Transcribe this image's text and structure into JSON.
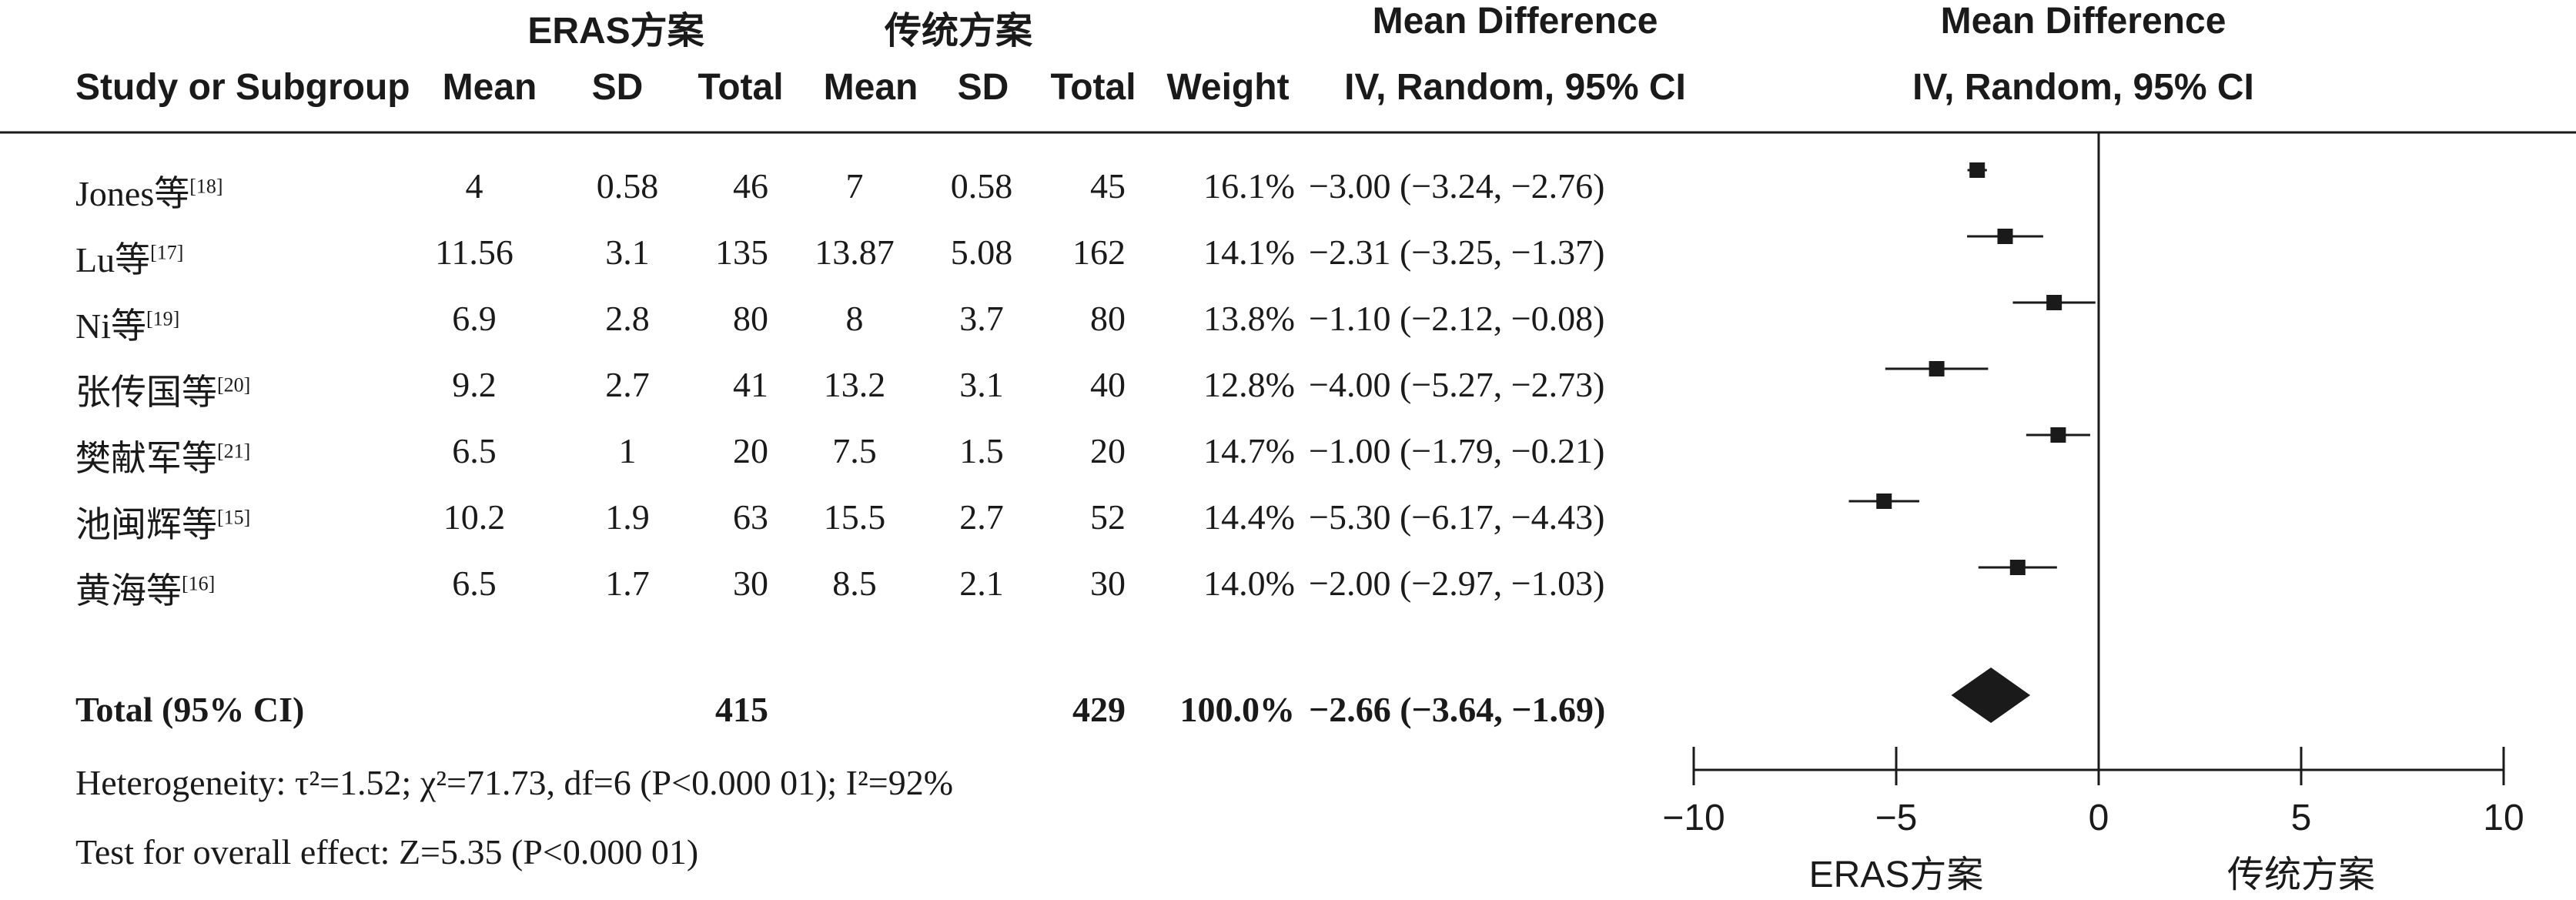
{
  "header": {
    "group1": "ERAS方案",
    "group2": "传统方案",
    "effect_title": "Mean Difference",
    "effect_method": "IV, Random, 95% CI",
    "plot_title": "Mean Difference",
    "plot_method": "IV, Random, 95% CI",
    "columns": {
      "study": "Study or Subgroup",
      "mean1": "Mean",
      "sd1": "SD",
      "total1": "Total",
      "mean2": "Mean",
      "sd2": "SD",
      "total2": "Total",
      "weight": "Weight"
    }
  },
  "studies": [
    {
      "name": "Jones等",
      "ref": "[18]",
      "mean1": "4",
      "sd1": "0.58",
      "total1": "46",
      "mean2": "7",
      "sd2": "0.58",
      "total2": "45",
      "weight": "16.1%",
      "ci": "−3.00 (−3.24, −2.76)"
    },
    {
      "name": "Lu等",
      "ref": "[17]",
      "mean1": "11.56",
      "sd1": "3.1",
      "total1": "135",
      "mean2": "13.87",
      "sd2": "5.08",
      "total2": "162",
      "weight": "14.1%",
      "ci": "−2.31 (−3.25, −1.37)"
    },
    {
      "name": "Ni等",
      "ref": "[19]",
      "mean1": "6.9",
      "sd1": "2.8",
      "total1": "80",
      "mean2": "8",
      "sd2": "3.7",
      "total2": "80",
      "weight": "13.8%",
      "ci": "−1.10 (−2.12, −0.08)"
    },
    {
      "name": "张传国等",
      "ref": "[20]",
      "mean1": "9.2",
      "sd1": "2.7",
      "total1": "41",
      "mean2": "13.2",
      "sd2": "3.1",
      "total2": "40",
      "weight": "12.8%",
      "ci": "−4.00 (−5.27, −2.73)"
    },
    {
      "name": "樊献军等",
      "ref": "[21]",
      "mean1": "6.5",
      "sd1": "1",
      "total1": "20",
      "mean2": "7.5",
      "sd2": "1.5",
      "total2": "20",
      "weight": "14.7%",
      "ci": "−1.00 (−1.79, −0.21)"
    },
    {
      "name": "池闽辉等",
      "ref": "[15]",
      "mean1": "10.2",
      "sd1": "1.9",
      "total1": "63",
      "mean2": "15.5",
      "sd2": "2.7",
      "total2": "52",
      "weight": "14.4%",
      "ci": "−5.30 (−6.17, −4.43)"
    },
    {
      "name": "黄海等",
      "ref": "[16]",
      "mean1": "6.5",
      "sd1": "1.7",
      "total1": "30",
      "mean2": "8.5",
      "sd2": "2.1",
      "total2": "30",
      "weight": "14.0%",
      "ci": "−2.00 (−2.97, −1.03)"
    }
  ],
  "total": {
    "label": "Total (95% CI)",
    "total1": "415",
    "total2": "429",
    "weight": "100.0%",
    "ci": "−2.66 (−3.64, −1.69)"
  },
  "footer": {
    "heterogeneity": "Heterogeneity: τ²=1.52; χ²=71.73, df=6 (P<0.000 01); I²=92%",
    "overall": "Test for overall effect: Z=5.35 (P<0.000 01)"
  },
  "chart_data": {
    "type": "forest",
    "xlim": [
      -10,
      10
    ],
    "ticks": [
      -10,
      -5,
      0,
      5,
      10
    ],
    "tick_labels": [
      "−10",
      "−5",
      "0",
      "5",
      "10"
    ],
    "favours_left": "ERAS方案",
    "favours_right": "传统方案",
    "studies": [
      {
        "md": -3.0,
        "lo": -3.24,
        "hi": -2.76
      },
      {
        "md": -2.31,
        "lo": -3.25,
        "hi": -1.37
      },
      {
        "md": -1.1,
        "lo": -2.12,
        "hi": -0.08
      },
      {
        "md": -4.0,
        "lo": -5.27,
        "hi": -2.73
      },
      {
        "md": -1.0,
        "lo": -1.79,
        "hi": -0.21
      },
      {
        "md": -5.3,
        "lo": -6.17,
        "hi": -4.43
      },
      {
        "md": -2.0,
        "lo": -2.97,
        "hi": -1.03
      }
    ],
    "pooled": {
      "md": -2.66,
      "lo": -3.64,
      "hi": -1.69
    },
    "color": "#1a1a1a"
  }
}
